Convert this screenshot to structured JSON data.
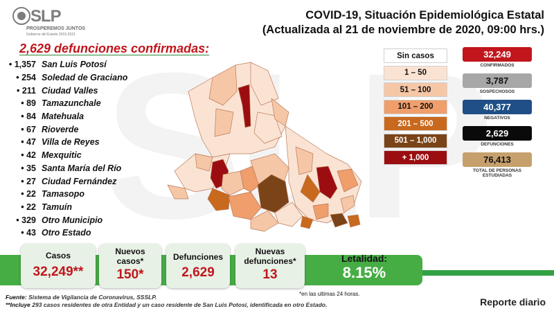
{
  "logo": {
    "name": "SLP",
    "tagline": "PROSPEREMOS JUNTOS",
    "subline": "Gobierno del Estado 2015-2021"
  },
  "header": {
    "title_line1": "COVID-19, Situación Epidemiológica Estatal",
    "title_line2": "(Actualizada al 21 de noviembre de 2020, 09:00 hrs.)"
  },
  "deaths": {
    "title": "2,629 defunciones confirmadas:",
    "municipalities": [
      {
        "count": "1,357",
        "name": "San Luis Potosí"
      },
      {
        "count": "254",
        "name": "Soledad de Graciano"
      },
      {
        "count": "211",
        "name": "Ciudad Valles"
      },
      {
        "count": "89",
        "name": "Tamazunchale"
      },
      {
        "count": "84",
        "name": "Matehuala"
      },
      {
        "count": "67",
        "name": "Rioverde"
      },
      {
        "count": "47",
        "name": "Villa de Reyes"
      },
      {
        "count": "42",
        "name": "Mexquitic"
      },
      {
        "count": "35",
        "name": "Santa María del Río"
      },
      {
        "count": "27",
        "name": "Ciudad Fernández"
      },
      {
        "count": "22",
        "name": "Tamasopo"
      },
      {
        "count": "22",
        "name": "Tamuín"
      },
      {
        "count": "329",
        "name": "Otro Municipio"
      },
      {
        "count": "43",
        "name": "Otro Estado"
      }
    ]
  },
  "legend": {
    "items": [
      {
        "label": "Sin casos",
        "bg": "#ffffff",
        "fg": "#111111"
      },
      {
        "label": "1 – 50",
        "bg": "#fbe3d3",
        "fg": "#111111"
      },
      {
        "label": "51 – 100",
        "bg": "#f6c7a6",
        "fg": "#111111"
      },
      {
        "label": "101 – 200",
        "bg": "#ef9e6c",
        "fg": "#111111"
      },
      {
        "label": "201 – 500",
        "bg": "#c8691e",
        "fg": "#ffffff"
      },
      {
        "label": "501 – 1,000",
        "bg": "#7a4418",
        "fg": "#ffffff"
      },
      {
        "label": "+ 1,000",
        "bg": "#9b0d10",
        "fg": "#ffffff"
      }
    ]
  },
  "stats": [
    {
      "value": "32,249",
      "label": "CONFIRMADOS",
      "bg": "#c0161c",
      "fg": "#ffffff"
    },
    {
      "value": "3,787",
      "label": "SOSPECHOSOS",
      "bg": "#a7a7a7",
      "fg": "#111111"
    },
    {
      "value": "40,377",
      "label": "NEGATIVOS",
      "bg": "#1f4f86",
      "fg": "#ffffff"
    },
    {
      "value": "2,629",
      "label": "DEFUNCIONES",
      "bg": "#0a0a0a",
      "fg": "#ffffff"
    },
    {
      "value": "76,413",
      "label": "TOTAL DE PERSONAS ESTUDIADAS",
      "bg": "#c6a06c",
      "fg": "#111111"
    }
  ],
  "summary": {
    "casos": {
      "label": "Casos",
      "value": "32,249**"
    },
    "nuevos_casos": {
      "label": "Nuevos casos*",
      "value": "150*"
    },
    "defunciones": {
      "label": "Defunciones",
      "value": "2,629"
    },
    "nuevas_defunciones": {
      "label": "Nuevas defunciones*",
      "value": "13"
    },
    "letalidad": {
      "label": "Letalidad:",
      "value": "8.15%"
    }
  },
  "notes": {
    "last24": "*en las ultimas 24 horas.",
    "fuente_key": "Fuente:",
    "fuente_text": "Sistema de Vigilancia de Coronavirus, SSSLP.",
    "incluye_key": "**Incluye",
    "incluye_text": "293 casos residentes de otra Entidad y un caso residente de San Luis Potosí, identificada en otro Estado.",
    "reporte": "Reporte diario"
  },
  "colors": {
    "accent_green": "#46ad45",
    "accent_red": "#c0161c"
  }
}
